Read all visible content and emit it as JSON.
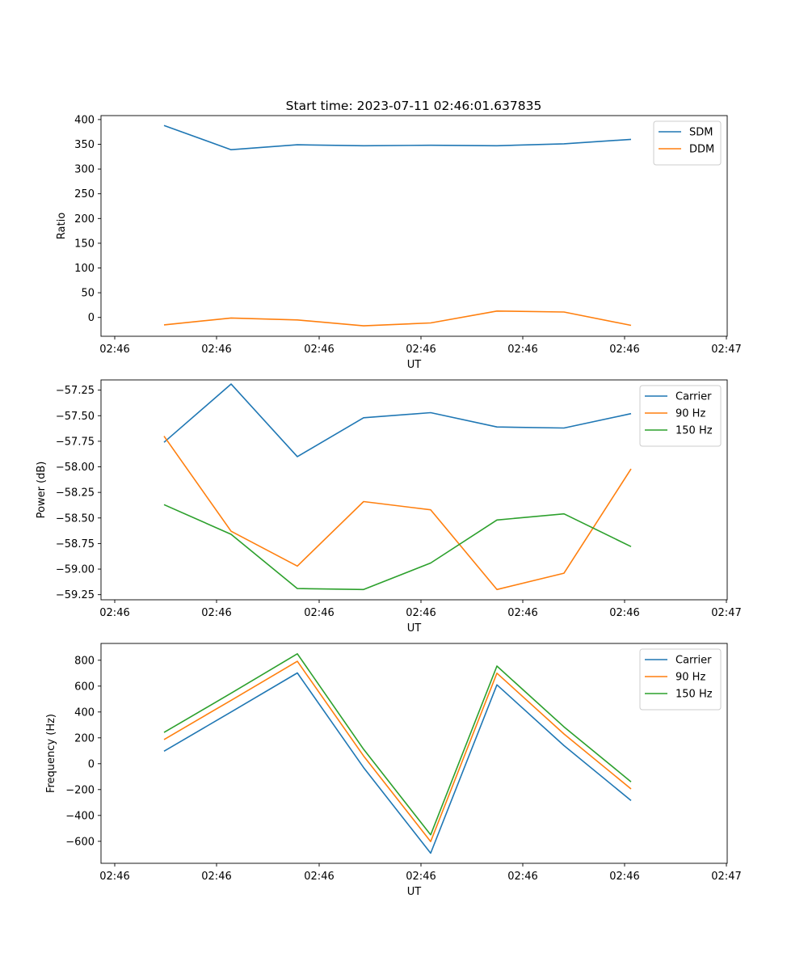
{
  "figure_title": "Start time: 2023-07-11 02:46:01.637835",
  "chart_data": [
    {
      "type": "line",
      "xlabel": "UT",
      "ylabel": "Ratio",
      "x_tick_labels": [
        "02:46",
        "02:46",
        "02:46",
        "02:46",
        "02:46",
        "02:46",
        "02:46"
      ],
      "x_tick_label_last": "02:47",
      "ylim": [
        -38,
        408
      ],
      "yticks": [
        0,
        50,
        100,
        150,
        200,
        250,
        300,
        350,
        400
      ],
      "ytick_labels": [
        "0",
        "50",
        "100",
        "150",
        "200",
        "250",
        "300",
        "350",
        "400"
      ],
      "series": [
        {
          "name": "SDM",
          "color": "#1f77b4",
          "values": [
            388,
            339,
            349,
            347,
            348,
            347,
            351,
            360
          ]
        },
        {
          "name": "DDM",
          "color": "#ff7f0e",
          "values": [
            -15,
            -1,
            -5,
            -17,
            -11,
            13,
            11,
            -16
          ]
        }
      ],
      "legend": "top-right"
    },
    {
      "type": "line",
      "xlabel": "UT",
      "ylabel": "Power (dB)",
      "x_tick_labels": [
        "02:46",
        "02:46",
        "02:46",
        "02:46",
        "02:46",
        "02:46",
        "02:46"
      ],
      "x_tick_label_last": "02:47",
      "ylim": [
        -59.3,
        -57.15
      ],
      "yticks": [
        -59.25,
        -59.0,
        -58.75,
        -58.5,
        -58.25,
        -58.0,
        -57.75,
        -57.5,
        -57.25
      ],
      "ytick_labels": [
        "−59.25",
        "−59.00",
        "−58.75",
        "−58.50",
        "−58.25",
        "−58.00",
        "−57.75",
        "−57.50",
        "−57.25"
      ],
      "series": [
        {
          "name": "Carrier",
          "color": "#1f77b4",
          "values": [
            -57.76,
            -57.19,
            -57.9,
            -57.52,
            -57.47,
            -57.61,
            -57.62,
            -57.48
          ]
        },
        {
          "name": "90 Hz",
          "color": "#ff7f0e",
          "values": [
            -57.7,
            -58.63,
            -58.97,
            -58.34,
            -58.42,
            -59.2,
            -59.04,
            -58.02
          ]
        },
        {
          "name": "150 Hz",
          "color": "#2ca02c",
          "values": [
            -58.37,
            -58.66,
            -59.19,
            -59.2,
            -58.94,
            -58.52,
            -58.46,
            -58.78
          ]
        }
      ],
      "legend": "top-right"
    },
    {
      "type": "line",
      "xlabel": "UT",
      "ylabel": "Frequency (Hz)",
      "x_tick_labels": [
        "02:46",
        "02:46",
        "02:46",
        "02:46",
        "02:46",
        "02:46",
        "02:46"
      ],
      "x_tick_label_last": "02:47",
      "ylim": [
        -770,
        930
      ],
      "yticks": [
        -600,
        -400,
        -200,
        0,
        200,
        400,
        600,
        800
      ],
      "ytick_labels": [
        "−600",
        "−400",
        "−200",
        "0",
        "200",
        "400",
        "600",
        "800"
      ],
      "series": [
        {
          "name": "Carrier",
          "color": "#1f77b4",
          "values": [
            97,
            400,
            702,
            -30,
            -692,
            610,
            140,
            -285
          ]
        },
        {
          "name": "90 Hz",
          "color": "#ff7f0e",
          "values": [
            187,
            490,
            792,
            60,
            -602,
            700,
            230,
            -195
          ]
        },
        {
          "name": "150 Hz",
          "color": "#2ca02c",
          "values": [
            242,
            545,
            850,
            112,
            -550,
            755,
            285,
            -140
          ]
        }
      ],
      "legend": "top-right"
    }
  ]
}
